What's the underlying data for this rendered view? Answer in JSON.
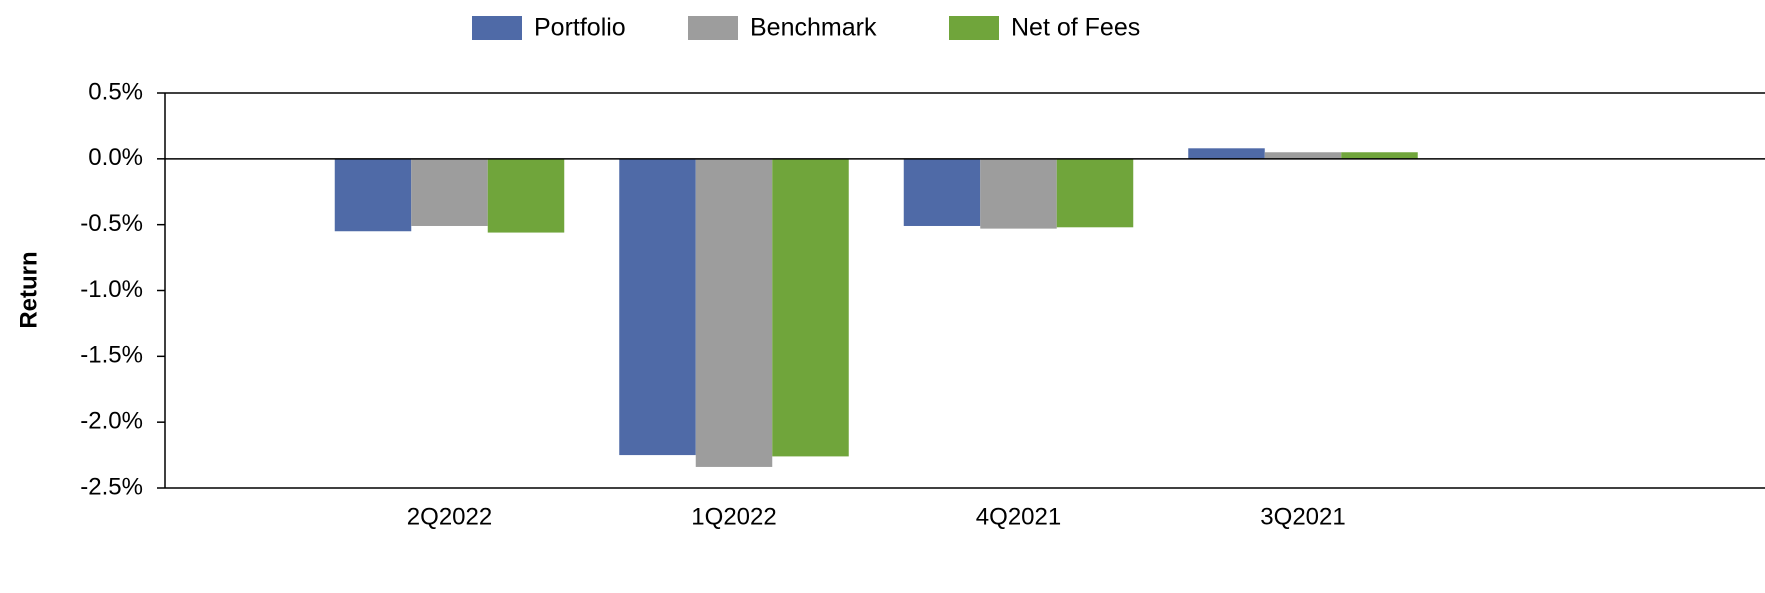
{
  "chart_data": {
    "type": "bar",
    "y_label": "Return",
    "categories": [
      "2Q2022",
      "1Q2022",
      "4Q2021",
      "3Q2021"
    ],
    "series": [
      {
        "name": "Portfolio",
        "color": "#4f6aa7",
        "values": [
          -0.55,
          -2.25,
          -0.51,
          0.08
        ]
      },
      {
        "name": "Benchmark",
        "color": "#9d9d9d",
        "values": [
          -0.51,
          -2.34,
          -0.53,
          0.05
        ]
      },
      {
        "name": "Net of Fees",
        "color": "#70a53b",
        "values": [
          -0.56,
          -2.26,
          -0.52,
          0.05
        ]
      }
    ],
    "ylim": [
      -2.5,
      0.5
    ],
    "yticks": [
      {
        "value": 0.5,
        "label": "0.5%"
      },
      {
        "value": 0,
        "label": "0.0%"
      },
      {
        "value": -0.5,
        "label": "-0.5%"
      },
      {
        "value": -1,
        "label": "-1.0%"
      },
      {
        "value": -1.5,
        "label": "-1.5%"
      },
      {
        "value": -2,
        "label": "-2.0%"
      },
      {
        "value": -2.5,
        "label": "-2.5%"
      }
    ],
    "legend": "top"
  }
}
